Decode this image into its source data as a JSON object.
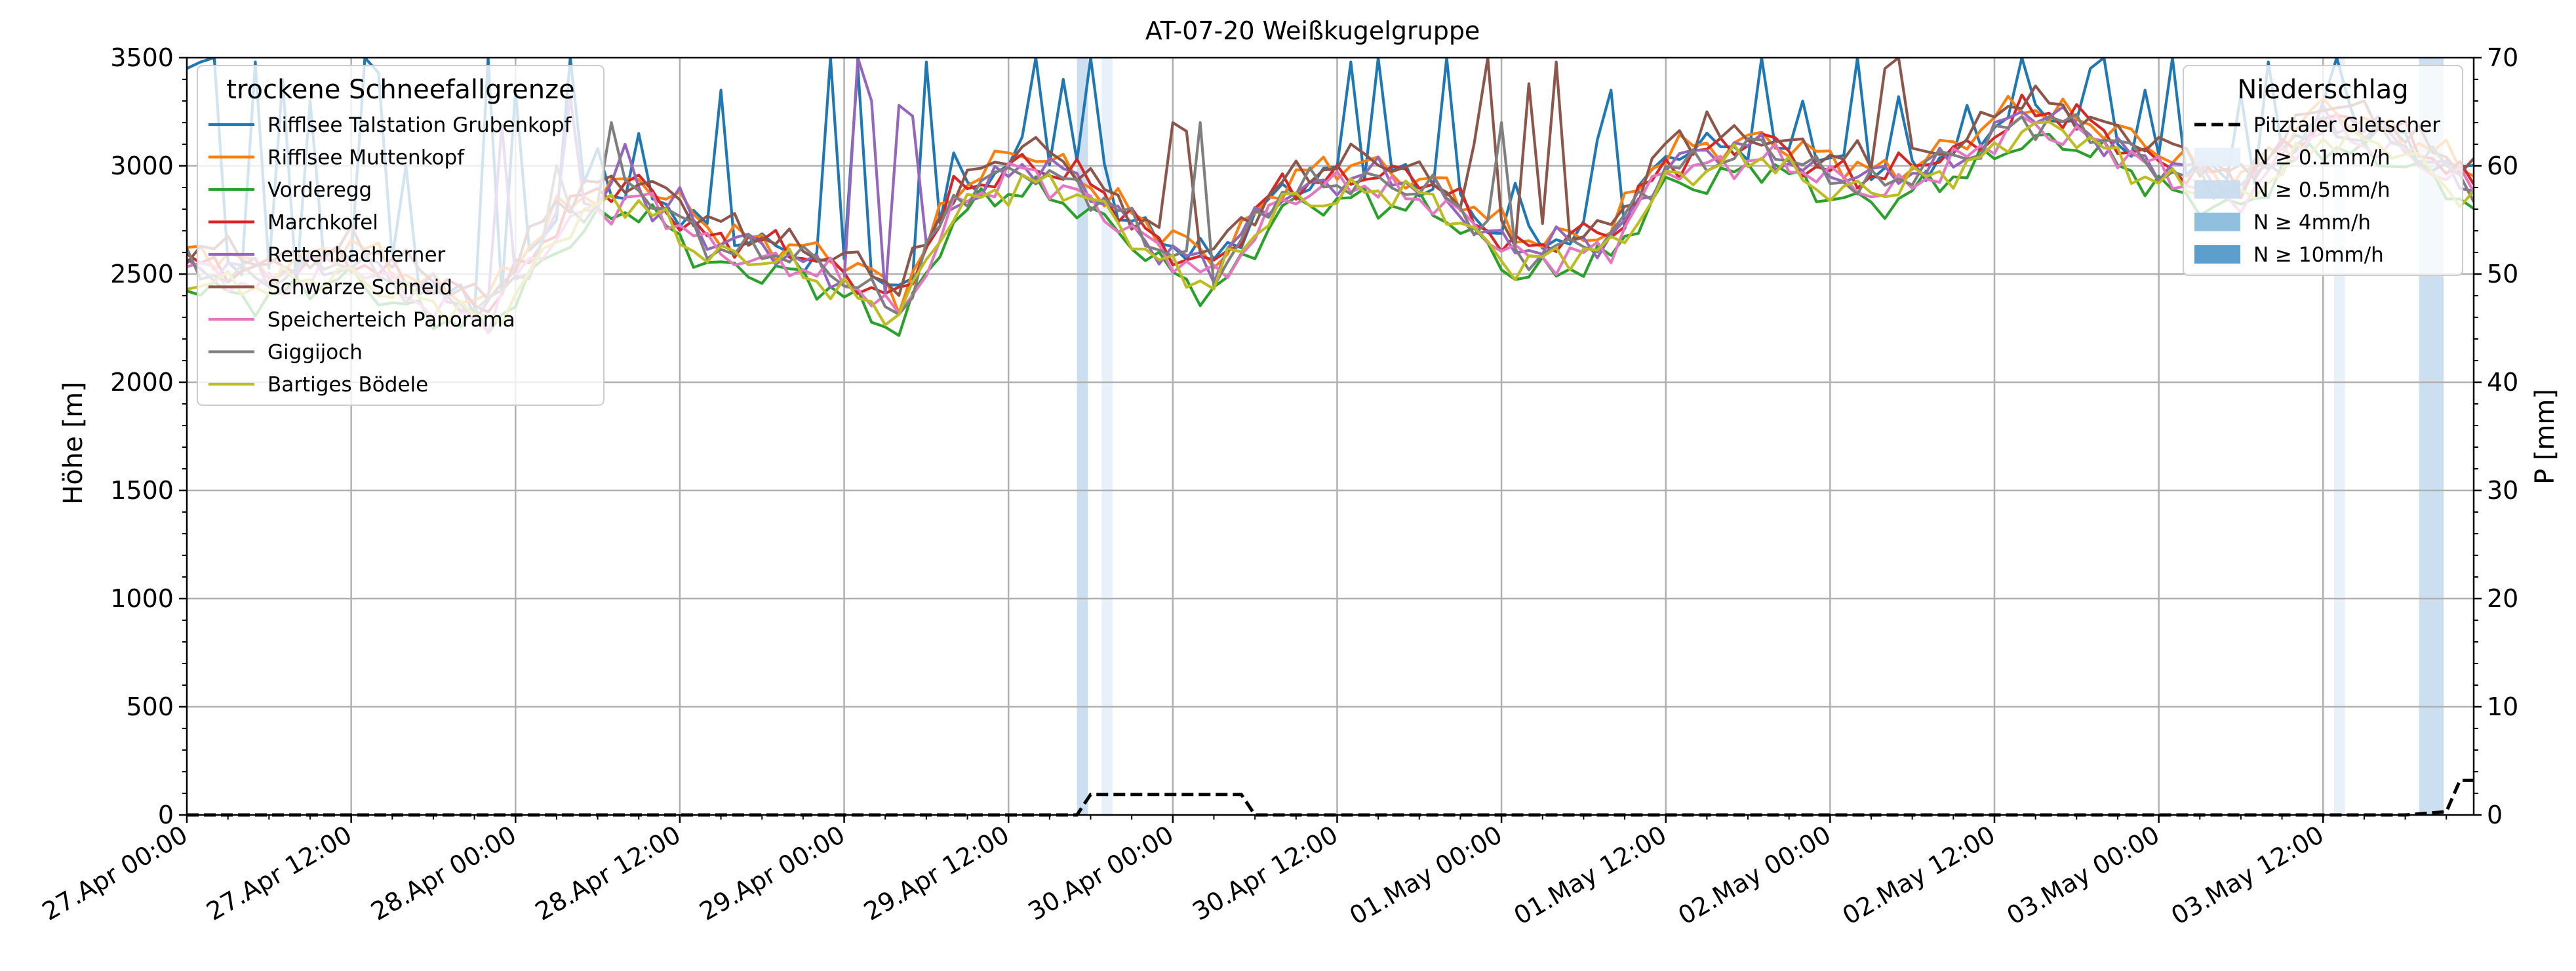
{
  "chart_data": {
    "type": "line",
    "title": "AT-07-20 Weißkugelgruppe",
    "ylabel": "Höhe [m]",
    "y2label": "P [mm]",
    "ylim": [
      0,
      3500
    ],
    "y2lim": [
      0,
      70
    ],
    "yticks": [
      "0",
      "500",
      "1000",
      "1500",
      "2000",
      "2500",
      "3000",
      "3500"
    ],
    "y2ticks": [
      "0",
      "10",
      "20",
      "30",
      "40",
      "50",
      "60",
      "70"
    ],
    "xlim_hours": [
      0,
      167
    ],
    "xticks": [
      "27.Apr 00:00",
      "27.Apr 12:00",
      "28.Apr 00:00",
      "28.Apr 12:00",
      "29.Apr 00:00",
      "29.Apr 12:00",
      "30.Apr 00:00",
      "30.Apr 12:00",
      "01.May 00:00",
      "01.May 12:00",
      "02.May 00:00",
      "02.May 12:00",
      "03.May 00:00",
      "03.May 12:00"
    ],
    "legend_left": {
      "title": "trockene Schneefallgrenze",
      "position": "upper-left"
    },
    "legend_right": {
      "title": "Niederschlag",
      "position": "upper-right",
      "items": [
        {
          "label": "Pitztaler Gletscher",
          "style": "dashed",
          "color": "#000000"
        },
        {
          "label": "N ≥ 0.1mm/h",
          "color": "#e6eff9",
          "alpha": 0.9
        },
        {
          "label": "N ≥ 0.5mm/h",
          "color": "#c6dbef",
          "alpha": 0.9
        },
        {
          "label": "N ≥ 4mm/h",
          "color": "#85b9db",
          "alpha": 0.9
        },
        {
          "label": "N ≥ 10mm/h",
          "color": "#4a93c6",
          "alpha": 0.9
        }
      ]
    },
    "anchor_hours": [
      0,
      6,
      12,
      18,
      22,
      27,
      29,
      33,
      38,
      44,
      50,
      52,
      56,
      61,
      65,
      69,
      71,
      75,
      80,
      86,
      91,
      97,
      104,
      108,
      115,
      119,
      124,
      130,
      134,
      138,
      143,
      150,
      156,
      161,
      167
    ],
    "base_profile": [
      2540,
      2480,
      2560,
      2400,
      2320,
      2720,
      2820,
      2880,
      2650,
      2580,
      2430,
      2340,
      2830,
      3000,
      2920,
      2720,
      2620,
      2510,
      2870,
      2950,
      2880,
      2600,
      2650,
      3000,
      3080,
      2970,
      2920,
      3050,
      3230,
      3180,
      3020,
      2880,
      3200,
      3120,
      2900
    ],
    "series": [
      {
        "name": "Rifflsee Talstation Grubenkopf",
        "color": "#1f77b4",
        "offset": 40,
        "spikes": [
          [
            0,
            3450
          ],
          [
            1,
            3480
          ],
          [
            2,
            3500
          ],
          [
            5,
            3480
          ],
          [
            7,
            3400
          ],
          [
            9,
            3300
          ],
          [
            13,
            3500
          ],
          [
            14,
            3430
          ],
          [
            16,
            3000
          ],
          [
            22,
            3500
          ],
          [
            24,
            3350
          ],
          [
            28,
            3500
          ],
          [
            30,
            3080
          ],
          [
            33,
            3150
          ],
          [
            39,
            3350
          ],
          [
            47,
            3500
          ],
          [
            49,
            3460
          ],
          [
            54,
            3480
          ],
          [
            56,
            3060
          ],
          [
            62,
            3500
          ],
          [
            64,
            3400
          ],
          [
            66,
            3500
          ],
          [
            67,
            3010
          ],
          [
            85,
            3480
          ],
          [
            87,
            3500
          ],
          [
            92,
            3500
          ],
          [
            97,
            2920
          ],
          [
            103,
            3120
          ],
          [
            104,
            3350
          ],
          [
            115,
            3500
          ],
          [
            118,
            3300
          ],
          [
            122,
            3500
          ],
          [
            125,
            3320
          ],
          [
            130,
            3280
          ],
          [
            134,
            3500
          ],
          [
            139,
            3450
          ],
          [
            140,
            3500
          ],
          [
            143,
            3350
          ],
          [
            145,
            3500
          ],
          [
            150,
            3330
          ],
          [
            152,
            3480
          ],
          [
            157,
            3500
          ],
          [
            159,
            3100
          ],
          [
            163,
            3000
          ]
        ]
      },
      {
        "name": "Rifflsee Muttenkopf",
        "color": "#ff7f0e",
        "offset": 60,
        "spikes": []
      },
      {
        "name": "Vorderegg",
        "color": "#2ca02c",
        "offset": -90,
        "spikes": []
      },
      {
        "name": "Marchkofel",
        "color": "#d62728",
        "offset": 30,
        "spikes": []
      },
      {
        "name": "Rettenbachferner",
        "color": "#9467bd",
        "offset": 10,
        "spikes": [
          [
            18,
            2500
          ],
          [
            23,
            3190
          ],
          [
            28,
            3320
          ],
          [
            32,
            3100
          ],
          [
            36,
            2900
          ],
          [
            49,
            3500
          ],
          [
            50,
            3300
          ],
          [
            52,
            3280
          ],
          [
            53,
            3230
          ]
        ]
      },
      {
        "name": "Schwarze Schneid",
        "color": "#8c564b",
        "offset": 80,
        "spikes": [
          [
            72,
            3200
          ],
          [
            73,
            3160
          ],
          [
            94,
            3100
          ],
          [
            95,
            3500
          ],
          [
            98,
            3380
          ],
          [
            100,
            3480
          ],
          [
            111,
            3250
          ],
          [
            124,
            3450
          ],
          [
            125,
            3510
          ]
        ]
      },
      {
        "name": "Speicherteich Panorama",
        "color": "#e377c2",
        "offset": -30,
        "spikes": []
      },
      {
        "name": "Giggijoch",
        "color": "#7f7f7f",
        "offset": 0,
        "spikes": [
          [
            27,
            3000
          ],
          [
            31,
            3200
          ],
          [
            74,
            3200
          ],
          [
            96,
            3200
          ]
        ]
      },
      {
        "name": "Bartiges Bödele",
        "color": "#bcbd22",
        "offset": -50,
        "spikes": []
      }
    ],
    "precip_series": {
      "name": "Pitztaler Gletscher",
      "points": [
        [
          0,
          0
        ],
        [
          65,
          0
        ],
        [
          66,
          1.9
        ],
        [
          77,
          1.9
        ],
        [
          78,
          0
        ],
        [
          162,
          0
        ],
        [
          165,
          0.3
        ],
        [
          166,
          3.2
        ],
        [
          167,
          3.2
        ]
      ]
    },
    "precip_bands": [
      {
        "start_hour": 65.0,
        "end_hour": 65.8,
        "level": "N ≥ 0.5mm/h"
      },
      {
        "start_hour": 66.8,
        "end_hour": 67.6,
        "level": "N ≥ 0.1mm/h"
      },
      {
        "start_hour": 156.8,
        "end_hour": 157.6,
        "level": "N ≥ 0.1mm/h"
      },
      {
        "start_hour": 163.0,
        "end_hour": 164.8,
        "level": "N ≥ 0.5mm/h"
      }
    ]
  }
}
